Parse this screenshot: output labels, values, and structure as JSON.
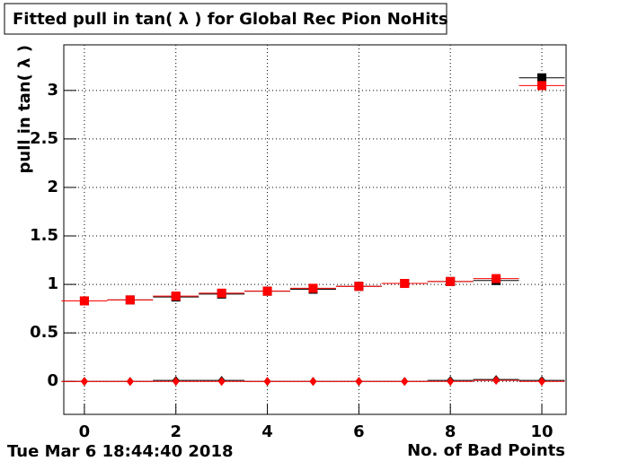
{
  "chart_data": {
    "type": "scatter",
    "title": "Fitted pull in tan( λ ) for Global Rec Pion NoHits",
    "x_label": "No. of Bad Points",
    "y_label": "pull in tan( λ )",
    "timestamp": "Tue Mar  6 18:44:40 2018",
    "x": [
      0,
      1,
      2,
      3,
      4,
      5,
      6,
      7,
      8,
      9,
      10
    ],
    "bin_width": 1,
    "series": [
      {
        "color": "#000000",
        "marker": "square",
        "values": [
          0.83,
          0.84,
          0.87,
          0.9,
          0.93,
          0.95,
          0.98,
          1.01,
          1.03,
          1.04,
          3.13
        ]
      },
      {
        "color": "#ff0000",
        "marker": "square",
        "values": [
          0.83,
          0.84,
          0.88,
          0.91,
          0.93,
          0.96,
          0.98,
          1.01,
          1.03,
          1.06,
          3.05
        ]
      },
      {
        "color": "#000000",
        "marker": "diamond",
        "values": [
          0,
          0,
          0.01,
          0.01,
          0,
          0,
          0,
          0,
          0.01,
          0.02,
          0.01
        ]
      },
      {
        "color": "#ff0000",
        "marker": "diamond",
        "values": [
          0,
          0,
          0,
          0,
          0,
          0,
          0,
          0,
          0,
          0.01,
          0
        ]
      }
    ],
    "xlim": [
      -0.45,
      10.53
    ],
    "ylim": [
      -0.34,
      3.47
    ],
    "xticks": [
      0,
      2,
      4,
      6,
      8,
      10
    ],
    "yticks": [
      0,
      0.5,
      1,
      1.5,
      2,
      2.5,
      3
    ],
    "grid": true
  }
}
